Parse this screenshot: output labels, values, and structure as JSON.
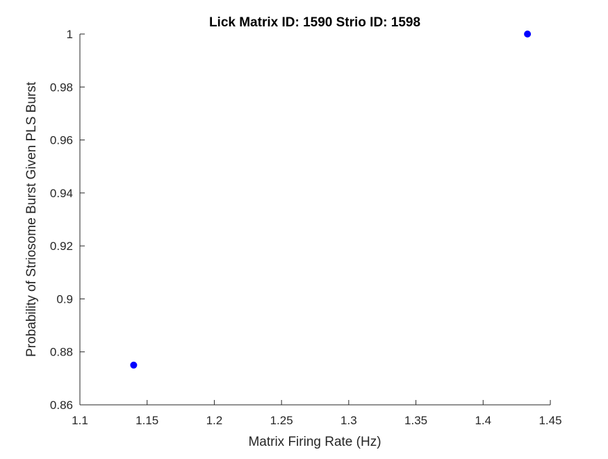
{
  "chart_data": {
    "type": "scatter",
    "title": "Lick Matrix ID: 1590 Strio ID: 1598",
    "xlabel": "Matrix Firing Rate (Hz)",
    "ylabel": "Probability of Striosome Burst Given PLS Burst",
    "xlim": [
      1.1,
      1.45
    ],
    "ylim": [
      0.86,
      1.0
    ],
    "xticks": [
      1.1,
      1.15,
      1.2,
      1.25,
      1.3,
      1.35,
      1.4,
      1.45
    ],
    "xtick_labels": [
      "1.1",
      "1.15",
      "1.2",
      "1.25",
      "1.3",
      "1.35",
      "1.4",
      "1.45"
    ],
    "yticks": [
      0.86,
      0.88,
      0.9,
      0.92,
      0.94,
      0.96,
      0.98,
      1.0
    ],
    "ytick_labels": [
      "0.86",
      "0.88",
      "0.9",
      "0.92",
      "0.94",
      "0.96",
      "0.98",
      "1"
    ],
    "grid": false,
    "legend": false,
    "box": false,
    "marker_color": "#0000ff",
    "series": [
      {
        "points": [
          {
            "x": 1.14,
            "y": 0.875
          },
          {
            "x": 1.433,
            "y": 1.0
          }
        ]
      }
    ]
  }
}
